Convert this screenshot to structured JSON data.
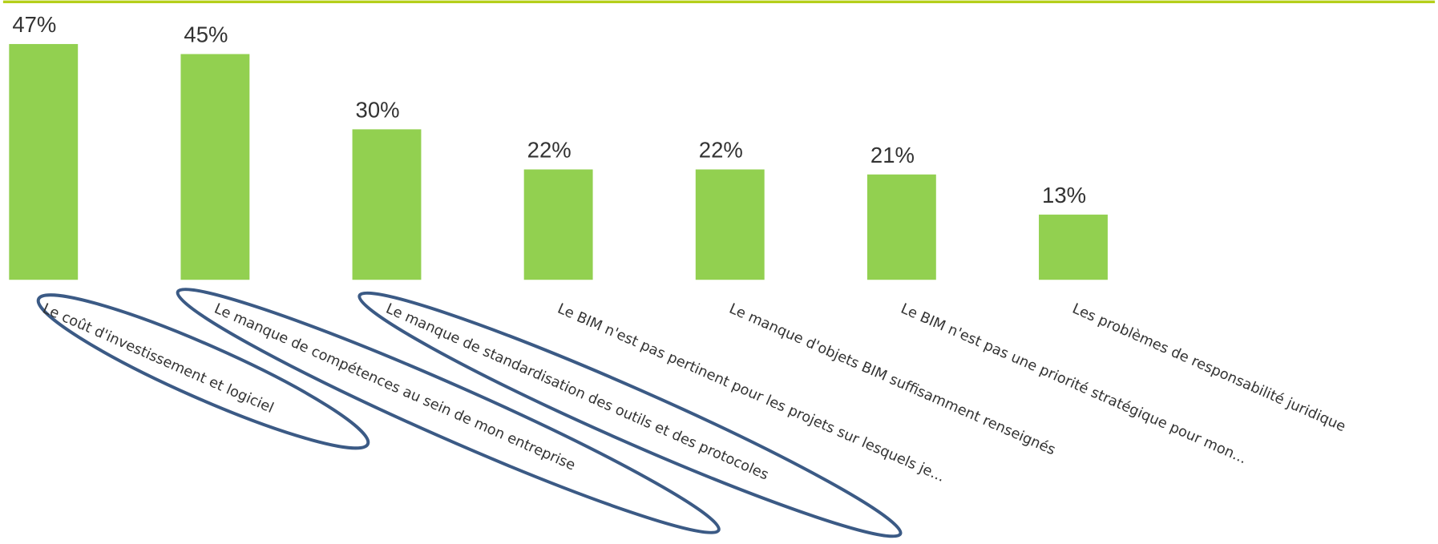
{
  "chart_data": {
    "type": "bar",
    "categories": [
      "Le coût d'investissement et logiciel",
      "Le manque de compétences au sein de mon entreprise",
      "Le manque de standardisation des outils et des protocoles",
      "Le BIM n'est pas pertinent pour les projets sur lesquels je...",
      "Le manque d'objets BIM suffisamment renseignés",
      "Le BIM n'est pas une priorité stratégique pour mon...",
      "Les problèmes de responsabilité juridique"
    ],
    "values": [
      47,
      45,
      30,
      22,
      22,
      21,
      13
    ],
    "value_labels": [
      "47%",
      "45%",
      "30%",
      "22%",
      "22%",
      "21%",
      "13%"
    ],
    "color": "#92d050"
  }
}
